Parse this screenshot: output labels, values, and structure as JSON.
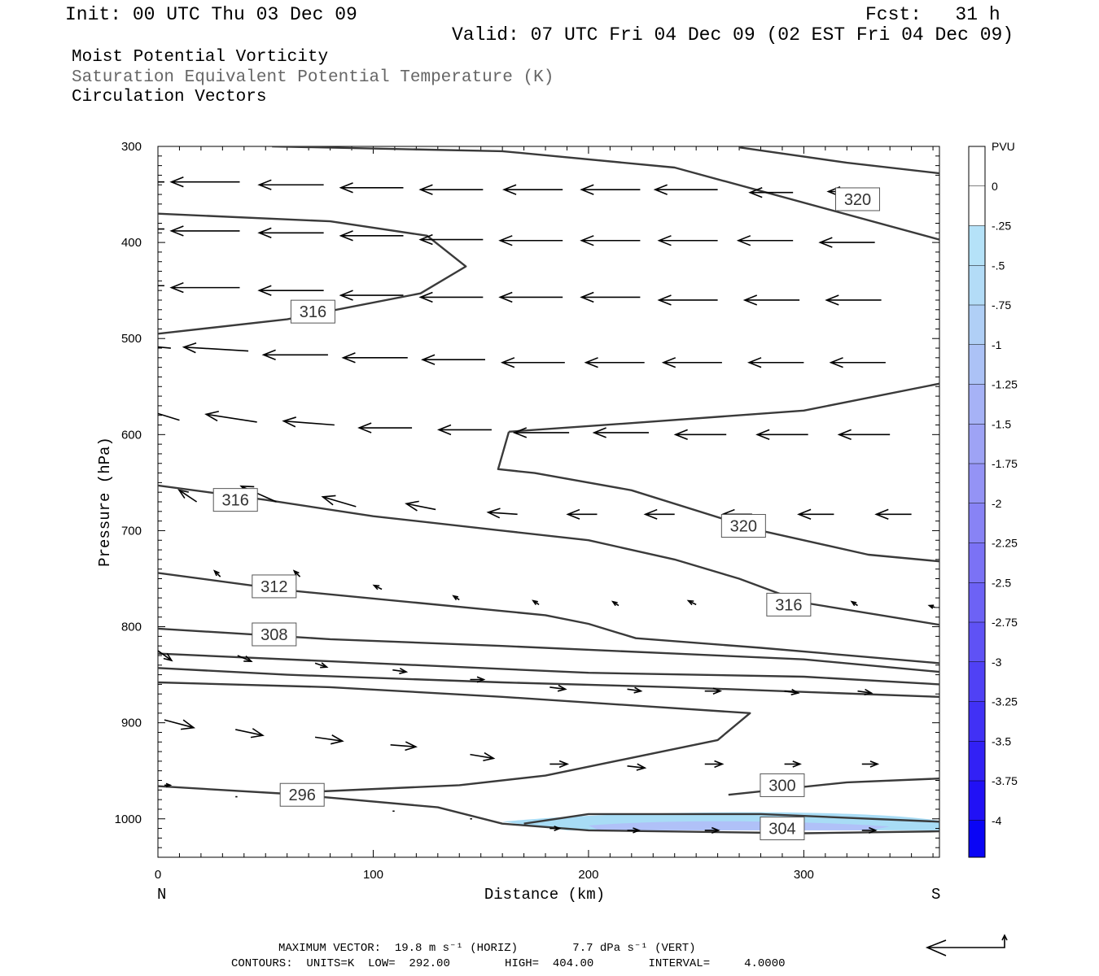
{
  "header": {
    "init": "Init: 00 UTC Thu 03 Dec 09",
    "fcst": "Fcst:   31 h",
    "valid": "Valid: 07 UTC Fri 04 Dec 09 (02 EST Fri 04 Dec 09)",
    "field1": "Moist Potential Vorticity",
    "field2": "Saturation Equivalent Potential Temperature (K)",
    "field3": "Circulation Vectors"
  },
  "footer": {
    "max_vector": "MAXIMUM VECTOR:  19.8 m s⁻¹ (HORIZ)        7.7 dPa s⁻¹ (VERT)",
    "contours": "CONTOURS:  UNITS=K  LOW=  292.00        HIGH=  404.00        INTERVAL=     4.0000"
  },
  "colors": {
    "contour": "#3a3a3a",
    "vector": "#000000",
    "pv_shade_light": "#a8dcf5",
    "pv_shade_mid": "#b3b8f8"
  },
  "chart_data": {
    "type": "cross-section",
    "xlabel": "Distance (km)",
    "ylabel": "Pressure (hPa)",
    "xlim": [
      0,
      363
    ],
    "ylim": [
      1040,
      300
    ],
    "x_ticks": [
      "0",
      "100",
      "200",
      "300"
    ],
    "x_tick_values": [
      0,
      100,
      200,
      300
    ],
    "y_ticks": [
      "300",
      "400",
      "500",
      "600",
      "700",
      "800",
      "900",
      "1000"
    ],
    "y_tick_values": [
      300,
      400,
      500,
      600,
      700,
      800,
      900,
      1000
    ],
    "left_end_label": "N",
    "right_end_label": "S",
    "colorbar": {
      "title": "PVU",
      "labels": [
        "0",
        "-.25",
        "-.5",
        "-.75",
        "-1",
        "-1.25",
        "-1.5",
        "-1.75",
        "-2",
        "-2.25",
        "-2.5",
        "-2.75",
        "-3",
        "-3.25",
        "-3.5",
        "-3.75",
        "-4"
      ],
      "colors": [
        "#ffffff",
        "#ffffff",
        "#b5e2f8",
        "#b3dcf7",
        "#b0cff6",
        "#acc2f6",
        "#a6b2f6",
        "#9ea3f5",
        "#9493f5",
        "#8883f5",
        "#7b72f5",
        "#6d62f5",
        "#5f52f5",
        "#5041f5",
        "#4131f5",
        "#3221f5",
        "#2111f5",
        "#0a05f5"
      ]
    },
    "contour_labels": [
      {
        "text": "320",
        "x": 325,
        "p": 355
      },
      {
        "text": "316",
        "x": 72,
        "p": 472
      },
      {
        "text": "316",
        "x": 36,
        "p": 668
      },
      {
        "text": "320",
        "x": 272,
        "p": 695
      },
      {
        "text": "312",
        "x": 54,
        "p": 758
      },
      {
        "text": "316",
        "x": 293,
        "p": 777
      },
      {
        "text": "308",
        "x": 54,
        "p": 808
      },
      {
        "text": "296",
        "x": 67,
        "p": 975
      },
      {
        "text": "300",
        "x": 290,
        "p": 965
      },
      {
        "text": "304",
        "x": 290,
        "p": 1010
      }
    ],
    "contours": [
      [
        [
          53,
          300
        ],
        [
          160,
          305
        ],
        [
          240,
          322
        ],
        [
          363,
          397
        ]
      ],
      [
        [
          270,
          301
        ],
        [
          320,
          317
        ],
        [
          363,
          328
        ]
      ],
      [
        [
          0,
          370
        ],
        [
          80,
          378
        ],
        [
          125,
          393
        ],
        [
          143,
          425
        ],
        [
          122,
          453
        ],
        [
          60,
          480
        ],
        [
          0,
          495
        ]
      ],
      [
        [
          163,
          597
        ],
        [
          220,
          588
        ],
        [
          300,
          575
        ],
        [
          363,
          547
        ]
      ],
      [
        [
          163,
          597
        ],
        [
          158,
          636
        ],
        [
          175,
          640
        ],
        [
          220,
          658
        ],
        [
          280,
          700
        ],
        [
          330,
          725
        ],
        [
          363,
          732
        ]
      ],
      [
        [
          0,
          653
        ],
        [
          50,
          668
        ],
        [
          100,
          685
        ],
        [
          160,
          700
        ],
        [
          200,
          710
        ],
        [
          240,
          730
        ],
        [
          270,
          750
        ],
        [
          300,
          775
        ],
        [
          363,
          798
        ]
      ],
      [
        [
          0,
          744
        ],
        [
          60,
          762
        ],
        [
          120,
          775
        ],
        [
          180,
          788
        ],
        [
          200,
          797
        ],
        [
          222,
          812
        ],
        [
          280,
          822
        ],
        [
          363,
          838
        ]
      ],
      [
        [
          0,
          802
        ],
        [
          80,
          813
        ],
        [
          160,
          820
        ],
        [
          240,
          828
        ],
        [
          300,
          834
        ],
        [
          363,
          847
        ]
      ],
      [
        [
          0,
          828
        ],
        [
          100,
          838
        ],
        [
          200,
          848
        ],
        [
          300,
          852
        ],
        [
          363,
          860
        ]
      ],
      [
        [
          0,
          843
        ],
        [
          60,
          850
        ],
        [
          160,
          858
        ],
        [
          240,
          863
        ],
        [
          363,
          873
        ]
      ],
      [
        [
          0,
          858
        ],
        [
          80,
          863
        ],
        [
          160,
          873
        ],
        [
          275,
          890
        ],
        [
          260,
          918
        ],
        [
          180,
          955
        ],
        [
          140,
          965
        ],
        [
          70,
          972
        ]
      ],
      [
        [
          265,
          975
        ],
        [
          320,
          962
        ],
        [
          363,
          958
        ]
      ],
      [
        [
          170,
          1005
        ],
        [
          200,
          995
        ],
        [
          280,
          995
        ],
        [
          363,
          1003
        ]
      ],
      [
        [
          0,
          966
        ],
        [
          60,
          974
        ],
        [
          130,
          988
        ],
        [
          160,
          1005
        ],
        [
          200,
          1012
        ],
        [
          300,
          1015
        ],
        [
          363,
          1013
        ]
      ]
    ],
    "vectors": [
      {
        "x": 3,
        "p": 337,
        "u": -35,
        "w": 0
      },
      {
        "x": 38,
        "p": 337,
        "u": -35,
        "w": 0
      },
      {
        "x": 77,
        "p": 340,
        "u": -33,
        "w": 0
      },
      {
        "x": 114,
        "p": 343,
        "u": -32,
        "w": 0
      },
      {
        "x": 151,
        "p": 345,
        "u": -32,
        "w": 0
      },
      {
        "x": 188,
        "p": 345,
        "u": -30,
        "w": 0
      },
      {
        "x": 224,
        "p": 345,
        "u": -30,
        "w": 0
      },
      {
        "x": 260,
        "p": 345,
        "u": -32,
        "w": 0
      },
      {
        "x": 295,
        "p": 348,
        "u": -22,
        "w": 0
      },
      {
        "x": 325,
        "p": 347,
        "u": -15,
        "w": 0
      },
      {
        "x": 3,
        "p": 386,
        "u": -35,
        "w": 0
      },
      {
        "x": 38,
        "p": 388,
        "u": -35,
        "w": 0
      },
      {
        "x": 77,
        "p": 390,
        "u": -33,
        "w": 0
      },
      {
        "x": 114,
        "p": 393,
        "u": -32,
        "w": 0
      },
      {
        "x": 151,
        "p": 397,
        "u": -32,
        "w": 0
      },
      {
        "x": 188,
        "p": 398,
        "u": -32,
        "w": 0
      },
      {
        "x": 224,
        "p": 398,
        "u": -30,
        "w": 0
      },
      {
        "x": 260,
        "p": 398,
        "u": -30,
        "w": 0
      },
      {
        "x": 295,
        "p": 398,
        "u": -28,
        "w": 0
      },
      {
        "x": 333,
        "p": 400,
        "u": -28,
        "w": 0
      },
      {
        "x": 3,
        "p": 445,
        "u": -35,
        "w": 0
      },
      {
        "x": 38,
        "p": 447,
        "u": -35,
        "w": 0
      },
      {
        "x": 77,
        "p": 450,
        "u": -33,
        "w": 0
      },
      {
        "x": 114,
        "p": 455,
        "u": -32,
        "w": 0
      },
      {
        "x": 151,
        "p": 457,
        "u": -32,
        "w": 0
      },
      {
        "x": 188,
        "p": 457,
        "u": -32,
        "w": 0
      },
      {
        "x": 224,
        "p": 457,
        "u": -30,
        "w": 0
      },
      {
        "x": 260,
        "p": 460,
        "u": -30,
        "w": 0
      },
      {
        "x": 298,
        "p": 460,
        "u": -28,
        "w": 0
      },
      {
        "x": 336,
        "p": 460,
        "u": -28,
        "w": 0
      },
      {
        "x": 6,
        "p": 510,
        "u": -33,
        "w": -3
      },
      {
        "x": 42,
        "p": 513,
        "u": -33,
        "w": -2
      },
      {
        "x": 79,
        "p": 517,
        "u": -33,
        "w": 0
      },
      {
        "x": 116,
        "p": 520,
        "u": -33,
        "w": 0
      },
      {
        "x": 152,
        "p": 522,
        "u": -32,
        "w": 0
      },
      {
        "x": 189,
        "p": 525,
        "u": -32,
        "w": 0
      },
      {
        "x": 226,
        "p": 525,
        "u": -30,
        "w": 0
      },
      {
        "x": 262,
        "p": 525,
        "u": -30,
        "w": 0
      },
      {
        "x": 300,
        "p": 525,
        "u": -28,
        "w": 0
      },
      {
        "x": 338,
        "p": 525,
        "u": -28,
        "w": 0
      },
      {
        "x": 10,
        "p": 585,
        "u": -26,
        "w": -8
      },
      {
        "x": 46,
        "p": 587,
        "u": -26,
        "w": -4
      },
      {
        "x": 82,
        "p": 590,
        "u": -26,
        "w": -2
      },
      {
        "x": 118,
        "p": 593,
        "u": -27,
        "w": 0
      },
      {
        "x": 155,
        "p": 595,
        "u": -27,
        "w": 0
      },
      {
        "x": 191,
        "p": 598,
        "u": -28,
        "w": 0
      },
      {
        "x": 228,
        "p": 598,
        "u": -28,
        "w": 0
      },
      {
        "x": 264,
        "p": 600,
        "u": -26,
        "w": 0
      },
      {
        "x": 302,
        "p": 600,
        "u": -26,
        "w": 0
      },
      {
        "x": 340,
        "p": 600,
        "u": -26,
        "w": 0
      },
      {
        "x": 18,
        "p": 670,
        "u": -9,
        "w": -6
      },
      {
        "x": 55,
        "p": 670,
        "u": -18,
        "w": -8
      },
      {
        "x": 92,
        "p": 675,
        "u": -17,
        "w": -5
      },
      {
        "x": 129,
        "p": 678,
        "u": -15,
        "w": -3
      },
      {
        "x": 167,
        "p": 683,
        "u": -15,
        "w": -1
      },
      {
        "x": 204,
        "p": 683,
        "u": -15,
        "w": 0
      },
      {
        "x": 240,
        "p": 683,
        "u": -15,
        "w": 0
      },
      {
        "x": 276,
        "p": 683,
        "u": -15,
        "w": 0
      },
      {
        "x": 314,
        "p": 683,
        "u": -18,
        "w": 0
      },
      {
        "x": 350,
        "p": 683,
        "u": -18,
        "w": 0
      },
      {
        "x": 29,
        "p": 748,
        "u": -3,
        "w": -3
      },
      {
        "x": 66,
        "p": 748,
        "u": -3,
        "w": -3
      },
      {
        "x": 104,
        "p": 761,
        "u": -4,
        "w": -2
      },
      {
        "x": 140,
        "p": 772,
        "u": -3,
        "w": -2
      },
      {
        "x": 177,
        "p": 777,
        "u": -3,
        "w": -2
      },
      {
        "x": 214,
        "p": 778,
        "u": -3,
        "w": -2
      },
      {
        "x": 250,
        "p": 777,
        "u": -4,
        "w": -2
      },
      {
        "x": 288,
        "p": 777,
        "u": -4,
        "w": -2
      },
      {
        "x": 325,
        "p": 778,
        "u": -3,
        "w": -2
      },
      {
        "x": 361,
        "p": 780,
        "u": -3,
        "w": -1
      },
      {
        "x": 0,
        "p": 825,
        "u": 7,
        "w": 5
      },
      {
        "x": 37,
        "p": 830,
        "u": 7,
        "w": 3
      },
      {
        "x": 73,
        "p": 838,
        "u": 6,
        "w": 2
      },
      {
        "x": 109,
        "p": 845,
        "u": 7,
        "w": 1
      },
      {
        "x": 145,
        "p": 855,
        "u": 7,
        "w": 0
      },
      {
        "x": 182,
        "p": 863,
        "u": 8,
        "w": 1
      },
      {
        "x": 218,
        "p": 865,
        "u": 7,
        "w": 1
      },
      {
        "x": 254,
        "p": 867,
        "u": 8,
        "w": 0
      },
      {
        "x": 291,
        "p": 867,
        "u": 7,
        "w": 1
      },
      {
        "x": 325,
        "p": 867,
        "u": 7,
        "w": 1
      },
      {
        "x": 3,
        "p": 897,
        "u": 15,
        "w": 4
      },
      {
        "x": 36,
        "p": 907,
        "u": 14,
        "w": 3
      },
      {
        "x": 73,
        "p": 915,
        "u": 14,
        "w": 2
      },
      {
        "x": 108,
        "p": 923,
        "u": 13,
        "w": 1
      },
      {
        "x": 145,
        "p": 933,
        "u": 12,
        "w": 2
      },
      {
        "x": 182,
        "p": 943,
        "u": 9,
        "w": 0
      },
      {
        "x": 218,
        "p": 945,
        "u": 9,
        "w": 1
      },
      {
        "x": 254,
        "p": 943,
        "u": 9,
        "w": 0
      },
      {
        "x": 291,
        "p": 943,
        "u": 8,
        "w": 0
      },
      {
        "x": 327,
        "p": 943,
        "u": 8,
        "w": 0
      },
      {
        "x": 3,
        "p": 965,
        "u": 3,
        "w": 0
      },
      {
        "x": 36,
        "p": 977,
        "u": 1,
        "w": 0
      },
      {
        "x": 109,
        "p": 992,
        "u": 1,
        "w": 0
      },
      {
        "x": 145,
        "p": 1000,
        "u": 1,
        "w": 0
      },
      {
        "x": 182,
        "p": 1010,
        "u": 5,
        "w": 0
      },
      {
        "x": 218,
        "p": 1012,
        "u": 6,
        "w": 0
      },
      {
        "x": 254,
        "p": 1012,
        "u": 7,
        "w": 0
      },
      {
        "x": 291,
        "p": 1012,
        "u": 7,
        "w": 0
      },
      {
        "x": 327,
        "p": 1012,
        "u": 7,
        "w": 0
      }
    ]
  }
}
